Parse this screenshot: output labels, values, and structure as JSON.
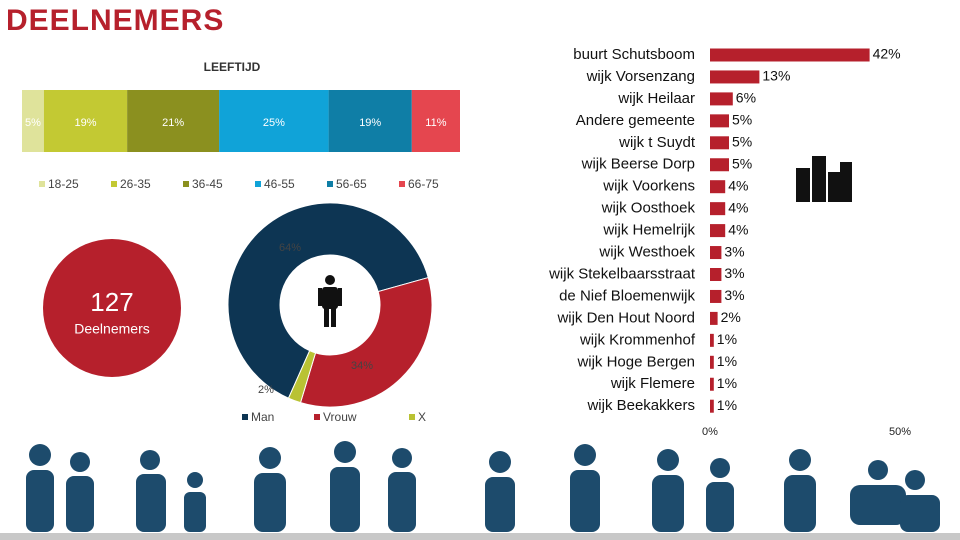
{
  "title": "DEELNEMERS",
  "participants": {
    "count": 127,
    "label": "Deelnemers"
  },
  "chart_data": [
    {
      "type": "stacked_bar",
      "title": "LEEFTIJD",
      "categories": [
        "18-25",
        "26-35",
        "36-45",
        "46-55",
        "56-65",
        "66-75"
      ],
      "values": [
        5,
        19,
        21,
        25,
        19,
        11
      ],
      "value_labels": [
        "5%",
        "19%",
        "21%",
        "25%",
        "19%",
        "11%"
      ],
      "colors": [
        "#dfe39b",
        "#c3c933",
        "#8b901f",
        "#10a3d8",
        "#0f7ea6",
        "#e5464f"
      ]
    },
    {
      "type": "donut",
      "categories": [
        "Man",
        "Vrouw",
        "X"
      ],
      "values": [
        64,
        34,
        2
      ],
      "value_labels": [
        "64%",
        "34%",
        "2%"
      ],
      "colors": [
        "#0d3553",
        "#b6202c",
        "#b9c233"
      ]
    },
    {
      "type": "hbar",
      "categories": [
        "buurt Schutsboom",
        "wijk Vorsenzang",
        "wijk Heilaar",
        "Andere gemeente",
        "wijk t Suydt",
        "wijk Beerse Dorp",
        "wijk Voorkens",
        "wijk Oosthoek",
        "wijk Hemelrijk",
        "wijk Westhoek",
        "wijk Stekelbaarsstraat",
        "de Nief Bloemenwijk",
        "wijk Den Hout Noord",
        "wijk Krommenhof",
        "wijk Hoge Bergen",
        "wijk Flemere",
        "wijk Beekakkers"
      ],
      "values": [
        42,
        13,
        6,
        5,
        5,
        5,
        4,
        4,
        4,
        3,
        3,
        3,
        2,
        1,
        1,
        1,
        1
      ],
      "value_labels": [
        "42%",
        "13%",
        "6%",
        "5%",
        "5%",
        "5%",
        "4%",
        "4%",
        "4%",
        "3%",
        "3%",
        "3%",
        "2%",
        "1%",
        "1%",
        "1%",
        "1%"
      ],
      "color": "#b6202c",
      "xlim": [
        0,
        50
      ],
      "xticks": [
        {
          "value": 0,
          "label": "0%"
        },
        {
          "value": 50,
          "label": "50%"
        }
      ]
    }
  ]
}
